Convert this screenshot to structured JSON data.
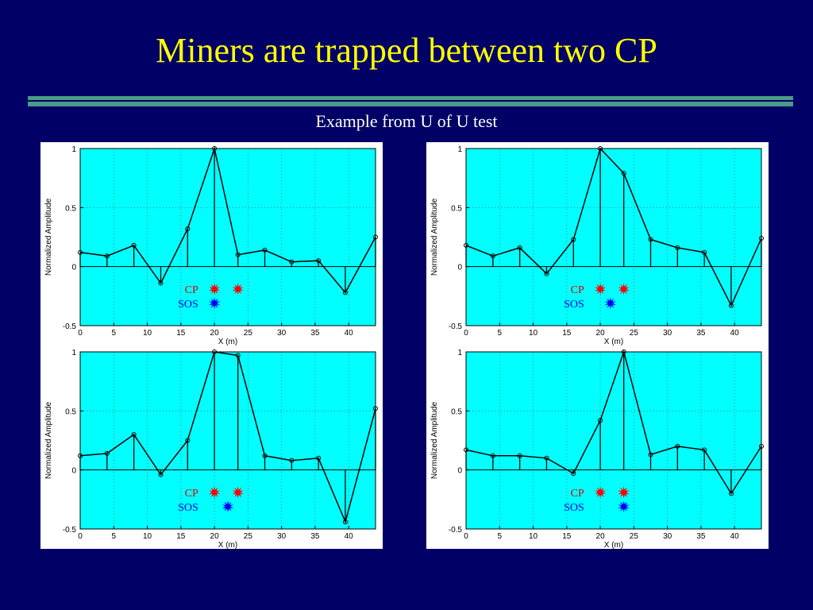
{
  "slide": {
    "title": "Miners are trapped between two CP",
    "subtitle": "Example from U of U test"
  },
  "colors": {
    "background": "#000066",
    "title": "#ffff00",
    "rule": "#4a9b88",
    "plot_area": "#00ffff",
    "cp_marker": "#ff0000",
    "sos_marker": "#0000ff"
  },
  "chart_data": [
    {
      "type": "stem-line",
      "xlabel": "X (m)",
      "ylabel": "Normalized Amplitude",
      "xlim": [
        0,
        44
      ],
      "ylim": [
        -0.5,
        1
      ],
      "xticks": [
        0,
        5,
        10,
        15,
        20,
        25,
        30,
        35,
        40
      ],
      "yticks": [
        -0.5,
        0,
        0.5,
        1
      ],
      "grid": true,
      "x": [
        0,
        4,
        8,
        12,
        16,
        20,
        23.5,
        27.5,
        31.5,
        35.5,
        39.5,
        44
      ],
      "y": [
        0.12,
        0.09,
        0.18,
        -0.14,
        0.32,
        1.0,
        0.1,
        0.14,
        0.04,
        0.05,
        -0.22,
        0.25
      ],
      "legend": {
        "cp_label": "CP",
        "sos_label": "SOS",
        "cp_x": [
          20,
          23.5
        ],
        "sos_x": [
          20
        ]
      }
    },
    {
      "type": "stem-line",
      "xlabel": "X (m)",
      "ylabel": "Normalized Amplitude",
      "xlim": [
        0,
        44
      ],
      "ylim": [
        -0.5,
        1
      ],
      "xticks": [
        0,
        5,
        10,
        15,
        20,
        25,
        30,
        35,
        40
      ],
      "yticks": [
        -0.5,
        0,
        0.5,
        1
      ],
      "grid": true,
      "x": [
        0,
        4,
        8,
        12,
        16,
        20,
        23.5,
        27.5,
        31.5,
        35.5,
        39.5,
        44
      ],
      "y": [
        0.18,
        0.09,
        0.16,
        -0.06,
        0.23,
        1.0,
        0.79,
        0.23,
        0.16,
        0.12,
        -0.33,
        0.24
      ],
      "legend": {
        "cp_label": "CP",
        "sos_label": "SOS",
        "cp_x": [
          20,
          23.5
        ],
        "sos_x": [
          21.5
        ]
      }
    },
    {
      "type": "stem-line",
      "xlabel": "X (m)",
      "ylabel": "Normalized Amplitude",
      "xlim": [
        0,
        44
      ],
      "ylim": [
        -0.5,
        1
      ],
      "xticks": [
        0,
        5,
        10,
        15,
        20,
        25,
        30,
        35,
        40
      ],
      "yticks": [
        -0.5,
        0,
        0.5,
        1
      ],
      "grid": true,
      "x": [
        0,
        4,
        8,
        12,
        16,
        20,
        23.5,
        27.5,
        31.5,
        35.5,
        39.5,
        44
      ],
      "y": [
        0.12,
        0.14,
        0.3,
        -0.04,
        0.25,
        1.0,
        0.97,
        0.12,
        0.08,
        0.1,
        -0.44,
        0.52
      ],
      "legend": {
        "cp_label": "CP",
        "sos_label": "SOS",
        "cp_x": [
          20,
          23.5
        ],
        "sos_x": [
          22
        ]
      }
    },
    {
      "type": "stem-line",
      "xlabel": "X (m)",
      "ylabel": "Normalized Amplitude",
      "xlim": [
        0,
        44
      ],
      "ylim": [
        -0.5,
        1
      ],
      "xticks": [
        0,
        5,
        10,
        15,
        20,
        25,
        30,
        35,
        40
      ],
      "yticks": [
        -0.5,
        0,
        0.5,
        1
      ],
      "grid": true,
      "x": [
        0,
        4,
        8,
        12,
        16,
        20,
        23.5,
        27.5,
        31.5,
        35.5,
        39.5,
        44
      ],
      "y": [
        0.17,
        0.12,
        0.12,
        0.1,
        -0.03,
        0.42,
        1.0,
        0.13,
        0.2,
        0.17,
        -0.2,
        0.2
      ],
      "legend": {
        "cp_label": "CP",
        "sos_label": "SOS",
        "cp_x": [
          20,
          23.5
        ],
        "sos_x": [
          23.5
        ]
      }
    }
  ]
}
